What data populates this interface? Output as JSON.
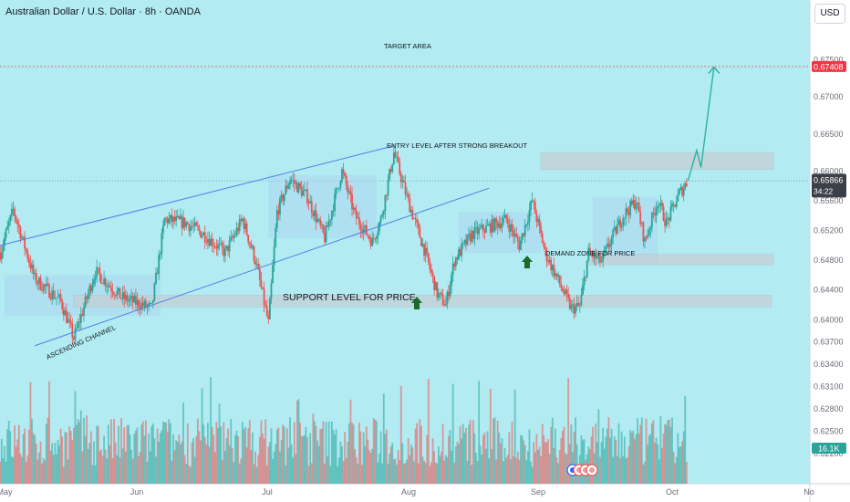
{
  "header": {
    "title": "Australian Dollar / U.S. Dollar · 8h · OANDA",
    "currency_button": "USD"
  },
  "colors": {
    "background": "#b2ebf2",
    "axis_background": "#ffffff",
    "up": "#26a69a",
    "down": "#ef5350",
    "channel": "#4e7fe8",
    "target_line": "#e57373",
    "projection": "#2bb3a3",
    "arrow": "#1b6b2a",
    "zone": "#c4cfd6",
    "box": "#a9d3ef",
    "price_badge": "#3b3f48",
    "target_badge": "#f23645",
    "volume_badge": "#26a69a"
  },
  "chart_data": {
    "type": "candlestick",
    "title": "Australian Dollar / U.S. Dollar · 8h · OANDA",
    "y_range": [
      0.6205,
      0.6775
    ],
    "y_ticks": [
      "0.67500",
      "0.67000",
      "0.66500",
      "0.66000",
      "0.65600",
      "0.65200",
      "0.64800",
      "0.64400",
      "0.64000",
      "0.63700",
      "0.63400",
      "0.63100",
      "0.62800",
      "0.62500",
      "0.62200"
    ],
    "x_ticks": [
      "May",
      "Jun",
      "Jul",
      "Aug",
      "Sep",
      "Oct",
      "No"
    ],
    "key_points": [
      {
        "date": "Apr 30",
        "price": 0.649
      },
      {
        "date": "May 03",
        "price": 0.6548
      },
      {
        "date": "May 08",
        "price": 0.6455
      },
      {
        "date": "May 14",
        "price": 0.6425
      },
      {
        "date": "May 17",
        "price": 0.6375
      },
      {
        "date": "May 22",
        "price": 0.6465
      },
      {
        "date": "May 28",
        "price": 0.643
      },
      {
        "date": "Jun 04",
        "price": 0.6415
      },
      {
        "date": "Jun 07",
        "price": 0.6535
      },
      {
        "date": "Jun 12",
        "price": 0.653
      },
      {
        "date": "Jun 16",
        "price": 0.6515
      },
      {
        "date": "Jun 21",
        "price": 0.649
      },
      {
        "date": "Jun 25",
        "price": 0.6535
      },
      {
        "date": "Jun 28",
        "price": 0.648
      },
      {
        "date": "Jul 01",
        "price": 0.6395
      },
      {
        "date": "Jul 03",
        "price": 0.6545
      },
      {
        "date": "Jul 06",
        "price": 0.659
      },
      {
        "date": "Jul 10",
        "price": 0.6565
      },
      {
        "date": "Jul 14",
        "price": 0.651
      },
      {
        "date": "Jul 18",
        "price": 0.66
      },
      {
        "date": "Jul 21",
        "price": 0.654
      },
      {
        "date": "Jul 25",
        "price": 0.6505
      },
      {
        "date": "Jul 27",
        "price": 0.6535
      },
      {
        "date": "Jul 30",
        "price": 0.6625
      },
      {
        "date": "Aug 02",
        "price": 0.6565
      },
      {
        "date": "Aug 06",
        "price": 0.6495
      },
      {
        "date": "Aug 09",
        "price": 0.6435
      },
      {
        "date": "Aug 11",
        "price": 0.642
      },
      {
        "date": "Aug 13",
        "price": 0.648
      },
      {
        "date": "Aug 17",
        "price": 0.6515
      },
      {
        "date": "Aug 21",
        "price": 0.6525
      },
      {
        "date": "Aug 25",
        "price": 0.6535
      },
      {
        "date": "Aug 28",
        "price": 0.65
      },
      {
        "date": "Aug 31",
        "price": 0.656
      },
      {
        "date": "Sep 03",
        "price": 0.649
      },
      {
        "date": "Sep 07",
        "price": 0.644
      },
      {
        "date": "Sep 09",
        "price": 0.6415
      },
      {
        "date": "Sep 11",
        "price": 0.6418
      },
      {
        "date": "Sep 13",
        "price": 0.649
      },
      {
        "date": "Sep 16",
        "price": 0.6478
      },
      {
        "date": "Sep 18",
        "price": 0.6505
      },
      {
        "date": "Sep 21",
        "price": 0.654
      },
      {
        "date": "Sep 24",
        "price": 0.656
      },
      {
        "date": "Sep 26",
        "price": 0.6505
      },
      {
        "date": "Sep 29",
        "price": 0.656
      },
      {
        "date": "Oct 01",
        "price": 0.653
      },
      {
        "date": "Oct 04",
        "price": 0.657
      },
      {
        "date": "Oct 06",
        "price": 0.6587
      }
    ],
    "current_price": {
      "value": "0.65866",
      "countdown": "34:22"
    },
    "target": {
      "label": "TARGET AREA",
      "value": "0.67408"
    },
    "volume_label": "16.1K",
    "annotations": [
      {
        "text": "ENTRY LEVEL AFTER STRONG BREAKOUT",
        "zone": [
          0.6602,
          0.6625
        ]
      },
      {
        "text": "DEMAND ZONE FOR PRICE",
        "zone": [
          0.6474,
          0.6488
        ]
      },
      {
        "text": "SUPPORT LEVEL FOR PRICE",
        "zone": [
          0.6417,
          0.6433
        ]
      },
      {
        "text": "ASCENDING CHANNEL"
      }
    ],
    "projection": [
      {
        "date": "Oct 06",
        "price": 0.6587
      },
      {
        "date": "Oct 08",
        "price": 0.6628
      },
      {
        "date": "Oct 09",
        "price": 0.6605
      },
      {
        "date": "Oct 12",
        "price": 0.674
      }
    ]
  }
}
